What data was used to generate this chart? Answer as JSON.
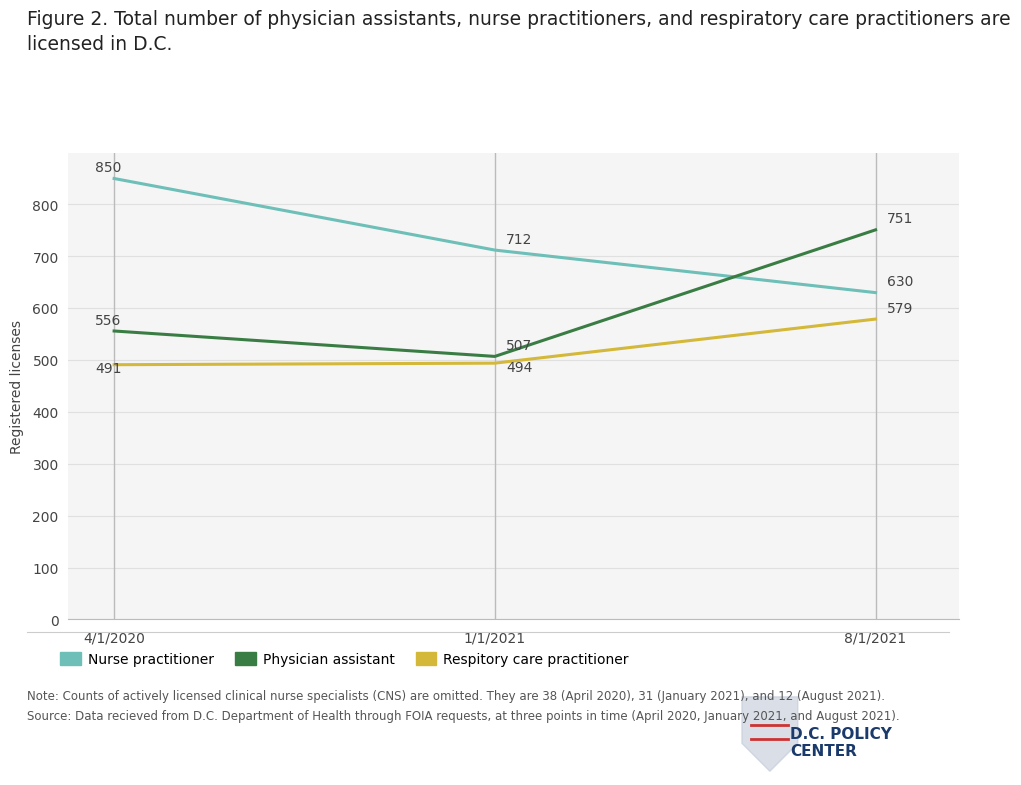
{
  "title_line1": "Figure 2. Total number of physician assistants, nurse practitioners, and respiratory care practitioners are",
  "title_line2": "licensed in D.C.",
  "ylabel": "Registered licenses",
  "x_labels": [
    "4/1/2020",
    "1/1/2021",
    "8/1/2021"
  ],
  "x_positions": [
    0,
    1,
    2
  ],
  "nurse_practitioner": [
    850,
    712,
    630
  ],
  "physician_assistant": [
    556,
    507,
    751
  ],
  "respiratory_care": [
    491,
    494,
    579
  ],
  "nurse_color": "#6dbfb8",
  "physician_color": "#3a7d44",
  "respiratory_color": "#d4b83a",
  "ylim": [
    0,
    900
  ],
  "yticks": [
    0,
    100,
    200,
    300,
    400,
    500,
    600,
    700,
    800
  ],
  "line_width": 2.2,
  "vline_color": "#bbbbbb",
  "grid_color": "#e0e0e0",
  "plot_bg_color": "#f5f5f5",
  "fig_bg_color": "#ffffff",
  "note_text1": "Note: Counts of actively licensed clinical nurse specialists (CNS) are omitted. They are 38 (April 2020), 31 (January 2021), and 12 (August 2021).",
  "note_text2": "Source: Data recieved from D.C. Department of Health through FOIA requests, at three points in time (April 2020, January 2021, and August 2021).",
  "legend_labels": [
    "Nurse practitioner",
    "Physician assistant",
    "Respitory care practitioner"
  ],
  "title_fontsize": 13.5,
  "label_fontsize": 10,
  "tick_fontsize": 10,
  "note_fontsize": 8.5,
  "annotation_fontsize": 10,
  "annotations": {
    "nurse": [
      [
        0,
        850,
        -0.05,
        8,
        "left"
      ],
      [
        1,
        712,
        0.03,
        8,
        "left"
      ],
      [
        2,
        630,
        0.03,
        8,
        "left"
      ]
    ],
    "physician": [
      [
        0,
        556,
        -0.05,
        8,
        "left"
      ],
      [
        1,
        507,
        0.03,
        8,
        "left"
      ],
      [
        2,
        751,
        0.03,
        8,
        "left"
      ]
    ],
    "respiratory": [
      [
        0,
        491,
        -0.05,
        -20,
        "left"
      ],
      [
        1,
        494,
        0.03,
        -22,
        "left"
      ],
      [
        2,
        579,
        0.03,
        8,
        "left"
      ]
    ]
  }
}
